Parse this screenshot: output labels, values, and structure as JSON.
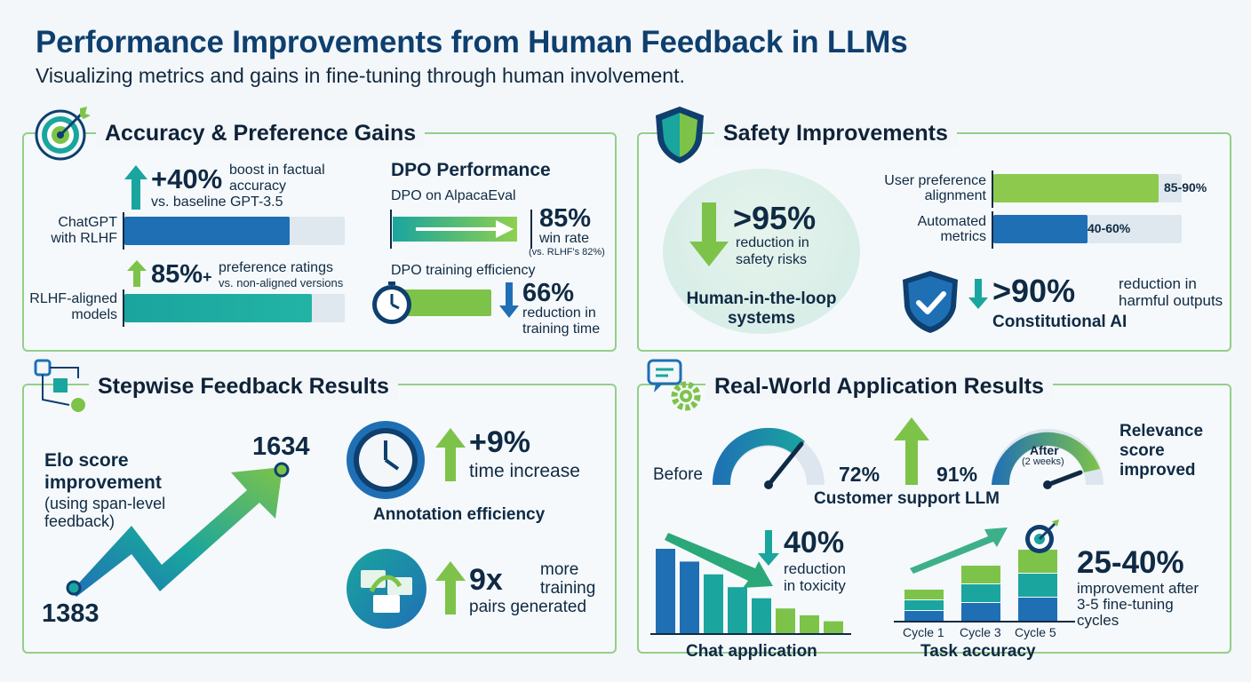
{
  "header": {
    "title": "Performance Improvements from Human Feedback in LLMs",
    "subtitle": "Visualizing metrics and gains in fine-tuning through human involvement."
  },
  "colors": {
    "navy": "#0e3f6e",
    "blue": "#1f6fb5",
    "teal": "#1aa59e",
    "green": "#7dc34a",
    "panel_border": "#93cf88"
  },
  "accuracy": {
    "title": "Accuracy & Preference Gains",
    "icon": "target-icon",
    "factual": {
      "value": "+40%",
      "desc_l1": "boost in factual",
      "desc_l2": "accuracy",
      "desc_l3": "vs. baseline GPT-3.5",
      "bar_label_l1": "ChatGPT",
      "bar_label_l2": "with RLHF",
      "fill": 0.75
    },
    "preference": {
      "value": "85%",
      "plus": "+",
      "desc_l1": "preference ratings",
      "desc_l2": "vs. non-aligned versions",
      "bar_label_l1": "RLHF-aligned",
      "bar_label_l2": "models",
      "fill": 0.85
    },
    "dpo": {
      "title": "DPO Performance",
      "alpaca_label": "DPO on AlpacaEval",
      "alpaca_value": "85%",
      "alpaca_desc": "win rate",
      "alpaca_note": "(vs. RLHF's 82%)",
      "eff_label": "DPO training efficiency",
      "eff_value": "66%",
      "eff_desc_l1": "reduction in",
      "eff_desc_l2": "training time"
    }
  },
  "safety": {
    "title": "Safety Improvements",
    "icon": "shield-icon",
    "risk_value": ">95%",
    "risk_desc_l1": "reduction in",
    "risk_desc_l2": "safety risks",
    "hitl_l1": "Human-in-the-loop",
    "hitl_l2": "systems",
    "bars": [
      {
        "label_l1": "User preference",
        "label_l2": "alignment",
        "value": "85-90%",
        "fill": 0.875
      },
      {
        "label_l1": "Automated",
        "label_l2": "metrics",
        "value": "40-60%",
        "fill": 0.5
      }
    ],
    "cai_value": ">90%",
    "cai_desc_l1": "reduction in",
    "cai_desc_l2": "harmful outputs",
    "cai_label": "Constitutional AI"
  },
  "stepwise": {
    "title": "Stepwise Feedback Results",
    "icon": "workflow-icon",
    "elo_l1": "Elo score",
    "elo_l2": "improvement",
    "elo_l3": "(using span-level",
    "elo_l4": "feedback)",
    "elo_start": "1383",
    "elo_end": "1634",
    "time_value": "+9%",
    "time_desc": "time increase",
    "annotation_label": "Annotation efficiency",
    "pairs_value": "9x",
    "pairs_desc_l1": "more",
    "pairs_desc_l2": "training",
    "pairs_desc_l3": "pairs generated"
  },
  "realworld": {
    "title": "Real-World Application Results",
    "icon": "chat-gear-icon",
    "before_label": "Before",
    "before_value": "72%",
    "after_label": "After",
    "after_note": "(2 weeks)",
    "after_value": "91%",
    "relevance_l1": "Relevance",
    "relevance_l2": "score",
    "relevance_l3": "improved",
    "support_label": "Customer support LLM",
    "toxicity_value": "40%",
    "toxicity_desc_l1": "reduction",
    "toxicity_desc_l2": "in toxicity",
    "chat_label": "Chat application",
    "task_value": "25-40%",
    "task_desc_l1": "improvement after",
    "task_desc_l2": "3-5 fine-tuning",
    "task_desc_l3": "cycles",
    "task_label": "Task accuracy",
    "cycles": [
      "Cycle 1",
      "Cycle 3",
      "Cycle 5"
    ]
  },
  "chart_data": [
    {
      "type": "line",
      "x": [
        "start",
        "end"
      ],
      "series": [
        {
          "values": [
            1383,
            1634
          ]
        }
      ]
    },
    {
      "type": "bar",
      "values": [
        100,
        85,
        70,
        55,
        42,
        30,
        22,
        15
      ]
    },
    {
      "type": "bar",
      "categories": [
        "Cycle 1",
        "Cycle 3",
        "Cycle 5"
      ],
      "stacked": true,
      "values": [
        40,
        70,
        90
      ]
    }
  ]
}
